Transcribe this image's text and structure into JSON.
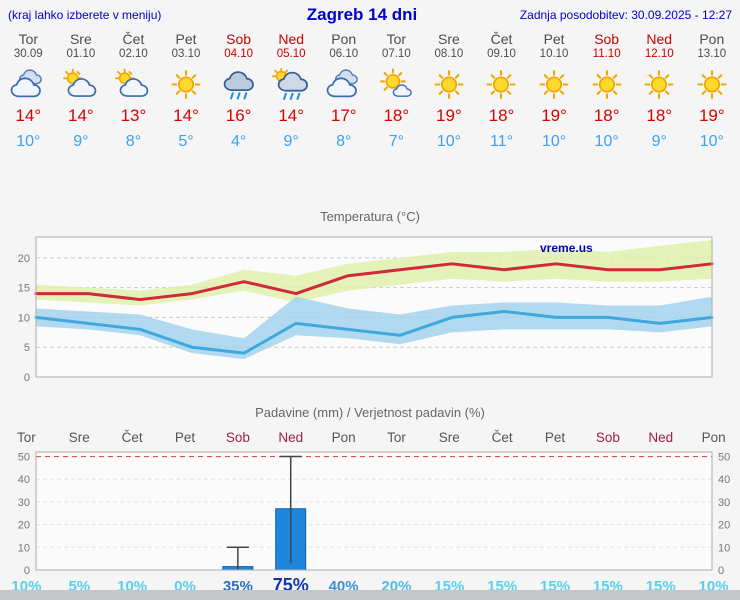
{
  "header": {
    "left_note": "(kraj lahko izberete v meniju)",
    "title": "Zagreb 14 dni",
    "updated": "Zadnja posodobitev: 30.09.2025 - 12:27"
  },
  "days": [
    {
      "name": "Tor",
      "date": "30.09",
      "weekend": false,
      "icon": "cloudy",
      "tmax": "14°",
      "tmin": "10°"
    },
    {
      "name": "Sre",
      "date": "01.10",
      "weekend": false,
      "icon": "partly",
      "tmax": "14°",
      "tmin": "9°"
    },
    {
      "name": "Čet",
      "date": "02.10",
      "weekend": false,
      "icon": "partly",
      "tmax": "13°",
      "tmin": "8°"
    },
    {
      "name": "Pet",
      "date": "03.10",
      "weekend": false,
      "icon": "sunny",
      "tmax": "14°",
      "tmin": "5°"
    },
    {
      "name": "Sob",
      "date": "04.10",
      "weekend": true,
      "icon": "rain",
      "tmax": "16°",
      "tmin": "4°"
    },
    {
      "name": "Ned",
      "date": "05.10",
      "weekend": true,
      "icon": "rain-sun",
      "tmax": "14°",
      "tmin": "9°"
    },
    {
      "name": "Pon",
      "date": "06.10",
      "weekend": false,
      "icon": "cloudy",
      "tmax": "17°",
      "tmin": "8°"
    },
    {
      "name": "Tor",
      "date": "07.10",
      "weekend": false,
      "icon": "mostly-sunny",
      "tmax": "18°",
      "tmin": "7°"
    },
    {
      "name": "Sre",
      "date": "08.10",
      "weekend": false,
      "icon": "sunny",
      "tmax": "19°",
      "tmin": "10°"
    },
    {
      "name": "Čet",
      "date": "09.10",
      "weekend": false,
      "icon": "sunny",
      "tmax": "18°",
      "tmin": "11°"
    },
    {
      "name": "Pet",
      "date": "10.10",
      "weekend": false,
      "icon": "sunny",
      "tmax": "19°",
      "tmin": "10°"
    },
    {
      "name": "Sob",
      "date": "11.10",
      "weekend": true,
      "icon": "sunny",
      "tmax": "18°",
      "tmin": "10°"
    },
    {
      "name": "Ned",
      "date": "12.10",
      "weekend": true,
      "icon": "sunny",
      "tmax": "18°",
      "tmin": "9°"
    },
    {
      "name": "Pon",
      "date": "13.10",
      "weekend": false,
      "icon": "sunny",
      "tmax": "19°",
      "tmin": "10°"
    }
  ],
  "chart_data": [
    {
      "type": "line",
      "title": "Temperatura (°C)",
      "watermark": "vreme.us",
      "x_labels": [
        "Tor 30.09",
        "Sre 01.10",
        "Čet 02.10",
        "Pet 03.10",
        "Sob 04.10",
        "Ned 05.10",
        "Pon 06.10",
        "Tor 07.10",
        "Sre 08.10",
        "Čet 09.10",
        "Pet 10.10",
        "Sob 11.10",
        "Ned 12.10",
        "Pon 13.10"
      ],
      "ylim": [
        0,
        23.5
      ],
      "yticks": [
        0,
        5,
        10,
        15,
        20
      ],
      "grid": "dashed",
      "series": [
        {
          "name": "max-temperature",
          "color": "#cf2a3a",
          "values": [
            14,
            14,
            13,
            14,
            16,
            14,
            17,
            18,
            19,
            18,
            19,
            18,
            18,
            19
          ]
        },
        {
          "name": "min-temperature",
          "color": "#3fa8de",
          "values": [
            10,
            9,
            8,
            5,
            4,
            9,
            8,
            7,
            10,
            11,
            10,
            10,
            9,
            10
          ]
        }
      ],
      "bands": [
        {
          "name": "max-temperature-range",
          "color": "#dff0a6",
          "upper": [
            15.5,
            15,
            14.5,
            15.5,
            18,
            17,
            19,
            20,
            21,
            21,
            21.5,
            21,
            22,
            23
          ],
          "lower": [
            13,
            12.5,
            12,
            13,
            14.5,
            12.5,
            14.5,
            15.5,
            16.5,
            16,
            16.5,
            16,
            16,
            16.5
          ]
        },
        {
          "name": "min-temperature-range",
          "color": "#9fd2ee",
          "upper": [
            11.5,
            11,
            10.5,
            8,
            6.5,
            13.5,
            11.5,
            10.5,
            12,
            12.5,
            12.5,
            12,
            12,
            13.5
          ],
          "lower": [
            8.5,
            8,
            7,
            4,
            3,
            7,
            6.5,
            5.5,
            7.5,
            8,
            8,
            8,
            7.5,
            8.5
          ]
        }
      ]
    },
    {
      "type": "bar",
      "title": "Padavine (mm) / Verjetnost padavin (%)",
      "categories": [
        "Tor",
        "Sre",
        "Čet",
        "Pet",
        "Sob",
        "Ned",
        "Pon",
        "Tor",
        "Sre",
        "Čet",
        "Pet",
        "Sob",
        "Ned",
        "Pon"
      ],
      "values": [
        0,
        0,
        0,
        0,
        1.5,
        27,
        0,
        0,
        0,
        0,
        0,
        0,
        0,
        0
      ],
      "whisker_max": [
        null,
        null,
        null,
        null,
        10,
        50,
        null,
        null,
        null,
        null,
        null,
        null,
        null,
        null
      ],
      "whisker_min": [
        null,
        null,
        null,
        null,
        0,
        3,
        null,
        null,
        null,
        null,
        null,
        null,
        null,
        null
      ],
      "ylim": [
        0,
        52
      ],
      "yticks": [
        0,
        10,
        20,
        30,
        40,
        50
      ],
      "bar_color": "#1e86dc",
      "bar_border": "#0f5fa8",
      "limit_line": {
        "value": 50,
        "color": "#e05050"
      },
      "probabilities": [
        {
          "label": "10%",
          "color": "#58d0ec",
          "big": false
        },
        {
          "label": "5%",
          "color": "#58d0ec",
          "big": false
        },
        {
          "label": "10%",
          "color": "#58d0ec",
          "big": false
        },
        {
          "label": "0%",
          "color": "#58d0ec",
          "big": false
        },
        {
          "label": "35%",
          "color": "#2a6fc0",
          "big": false
        },
        {
          "label": "75%",
          "color": "#1236ae",
          "big": true
        },
        {
          "label": "40%",
          "color": "#3d8fd8",
          "big": false
        },
        {
          "label": "20%",
          "color": "#4fbce6",
          "big": false
        },
        {
          "label": "15%",
          "color": "#58d0ec",
          "big": false
        },
        {
          "label": "15%",
          "color": "#58d0ec",
          "big": false
        },
        {
          "label": "15%",
          "color": "#58d0ec",
          "big": false
        },
        {
          "label": "15%",
          "color": "#58d0ec",
          "big": false
        },
        {
          "label": "15%",
          "color": "#58d0ec",
          "big": false
        },
        {
          "label": "10%",
          "color": "#58d0ec",
          "big": false
        }
      ]
    }
  ]
}
